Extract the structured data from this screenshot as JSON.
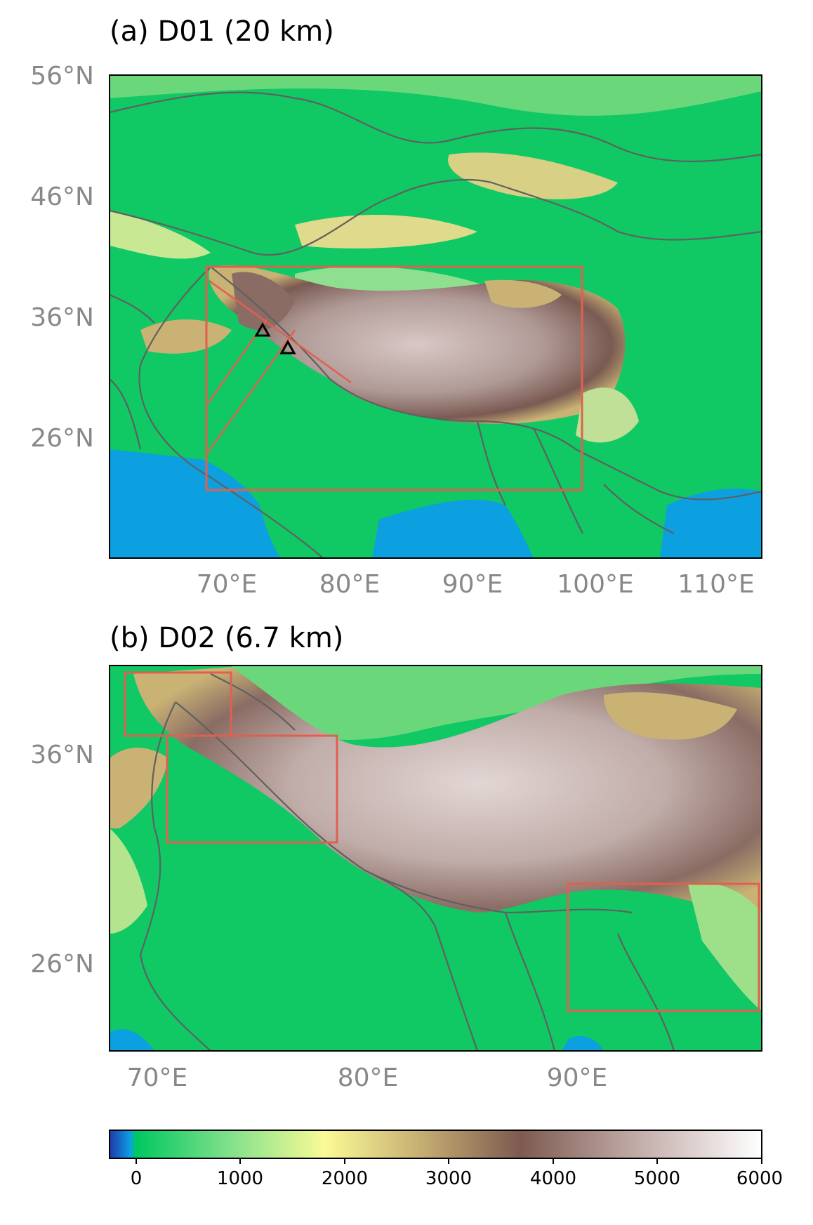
{
  "panel_a": {
    "title": "(a) D01 (20 km)",
    "lat_labels": [
      "56°N",
      "46°N",
      "36°N",
      "26°N"
    ],
    "lon_labels": [
      "70°E",
      "80°E",
      "90°E",
      "100°E",
      "110°E"
    ]
  },
  "panel_b": {
    "title": "(b) D02 (6.7 km)",
    "lat_labels": [
      "36°N",
      "26°N"
    ],
    "lon_labels": [
      "70°E",
      "80°E",
      "90°E"
    ]
  },
  "colorbar": {
    "ticks": [
      "0",
      "1000",
      "2000",
      "3000",
      "4000",
      "5000",
      "6000"
    ],
    "stops": [
      {
        "value": -250,
        "color": "#1e3aa8"
      },
      {
        "value": -50,
        "color": "#0e9ee6"
      },
      {
        "value": 0,
        "color": "#00c860"
      },
      {
        "value": 1000,
        "color": "#7ee08a"
      },
      {
        "value": 2000,
        "color": "#fafa96"
      },
      {
        "value": 3000,
        "color": "#c9b274"
      },
      {
        "value": 4000,
        "color": "#7d5a50"
      },
      {
        "value": 5000,
        "color": "#bfa8a4"
      },
      {
        "value": 6000,
        "color": "#ffffff"
      }
    ]
  },
  "colors": {
    "ocean": "#0ca0e0",
    "lowland": "#10c864",
    "border": "#606060",
    "domain_box": "#e06050",
    "axis_text": "#888888"
  },
  "markers": [
    "triangle",
    "triangle"
  ]
}
